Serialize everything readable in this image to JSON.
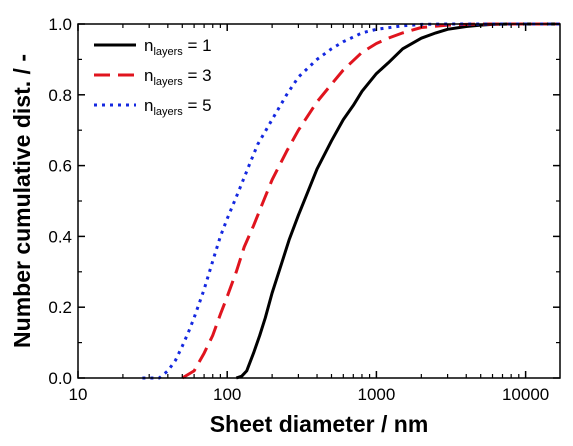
{
  "chart_data": {
    "type": "line",
    "title": "",
    "xlabel": "Sheet diameter / nm",
    "ylabel": "Number cumulative dist. / -",
    "x_scale": "log",
    "xlim": [
      10,
      17000
    ],
    "ylim": [
      0,
      1.0
    ],
    "x_ticks": [
      10,
      100,
      1000,
      10000
    ],
    "x_tick_labels": [
      "10",
      "100",
      "1000",
      "10000"
    ],
    "y_ticks": [
      0,
      0.2,
      0.4,
      0.6,
      0.8,
      1.0
    ],
    "y_tick_labels": [
      "0.0",
      "0.2",
      "0.4",
      "0.6",
      "0.8",
      "1.0"
    ],
    "grid": false,
    "legend_position": "top-left",
    "series": [
      {
        "legend_main": "n",
        "legend_sub": "layers",
        "legend_value": " = 1",
        "color": "#000000",
        "dash": "solid",
        "x": [
          115,
          125,
          135,
          150,
          165,
          180,
          200,
          230,
          260,
          300,
          350,
          400,
          500,
          600,
          700,
          800,
          1000,
          1200,
          1500,
          2000,
          2500,
          3000,
          4000,
          5000,
          6000,
          8000,
          10000,
          17000
        ],
        "y": [
          0.0,
          0.005,
          0.02,
          0.07,
          0.12,
          0.17,
          0.24,
          0.32,
          0.39,
          0.46,
          0.53,
          0.59,
          0.67,
          0.73,
          0.77,
          0.81,
          0.86,
          0.89,
          0.93,
          0.96,
          0.975,
          0.985,
          0.993,
          0.997,
          0.999,
          1.0,
          1.0,
          1.0
        ]
      },
      {
        "legend_main": "n",
        "legend_sub": "layers",
        "legend_value": " = 3",
        "color": "#e0141e",
        "dash": "dashed",
        "x": [
          50,
          60,
          70,
          80,
          90,
          100,
          115,
          130,
          150,
          175,
          200,
          250,
          300,
          400,
          500,
          600,
          800,
          1000,
          1200,
          1500,
          2000,
          3000,
          4000,
          5000,
          17000
        ],
        "y": [
          0.0,
          0.02,
          0.07,
          0.12,
          0.18,
          0.23,
          0.3,
          0.37,
          0.43,
          0.5,
          0.56,
          0.64,
          0.7,
          0.78,
          0.83,
          0.87,
          0.92,
          0.945,
          0.96,
          0.975,
          0.99,
          0.997,
          0.999,
          1.0,
          1.0
        ]
      },
      {
        "legend_main": "n",
        "legend_sub": "layers",
        "legend_value": " = 5",
        "color": "#1428e0",
        "dash": "dotted",
        "x": [
          27,
          35,
          40,
          45,
          50,
          55,
          60,
          70,
          80,
          90,
          100,
          120,
          140,
          160,
          200,
          250,
          300,
          400,
          500,
          600,
          800,
          1000,
          1500,
          2000,
          3000,
          17000
        ],
        "y": [
          0.0,
          0.0,
          0.02,
          0.05,
          0.09,
          0.13,
          0.17,
          0.25,
          0.33,
          0.4,
          0.45,
          0.53,
          0.6,
          0.66,
          0.73,
          0.8,
          0.85,
          0.9,
          0.93,
          0.95,
          0.975,
          0.985,
          0.995,
          0.999,
          1.0,
          1.0
        ]
      }
    ]
  }
}
